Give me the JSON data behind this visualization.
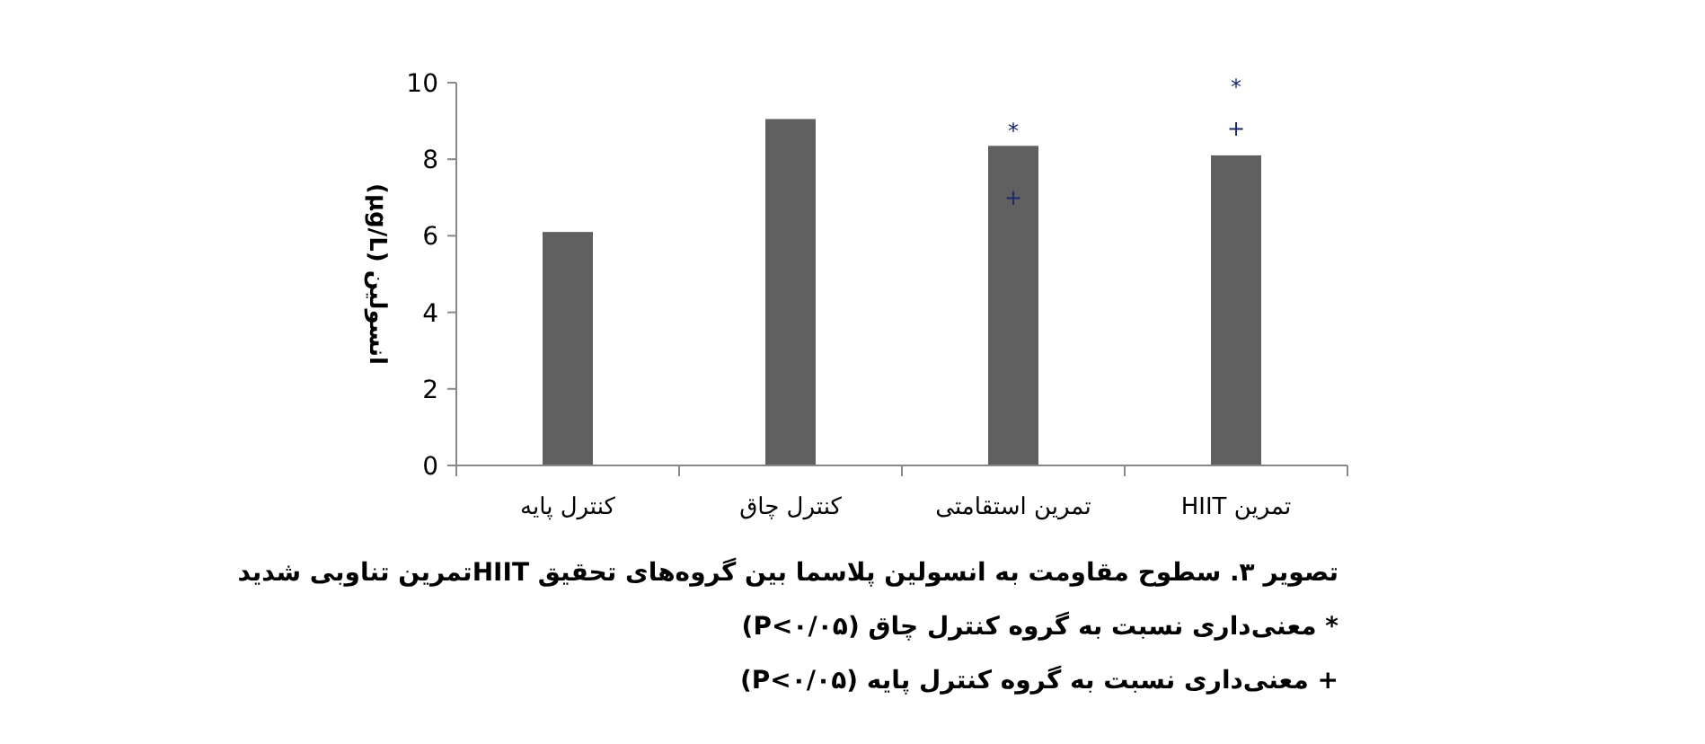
{
  "chart_data": {
    "type": "bar",
    "categories": [
      "کنترل پایه",
      "کنترل چاق",
      "تمرین استقامتی",
      "تمرین HIIT"
    ],
    "values": [
      6.1,
      9.05,
      8.35,
      8.1
    ],
    "color": "#606060",
    "ylabel": "انسولین (µg/L)",
    "ylim": [
      0,
      10
    ],
    "yticks": [
      0,
      2,
      4,
      6,
      8,
      10
    ],
    "grid": false,
    "annotations": [
      "*",
      "+",
      "*",
      "+",
      "تصویر ۳. سطوح مقاومت به انسولین پلاسما بین گروه‌های تحقیق HIITتمرین تناوبی شدید",
      "* معنی‌داری نسبت به گروه کنترل چاق (P<۰/۰۵)",
      "+ معنی‌داری نسبت به گروه کنترل پایه (P<۰/۰۵)"
    ]
  }
}
